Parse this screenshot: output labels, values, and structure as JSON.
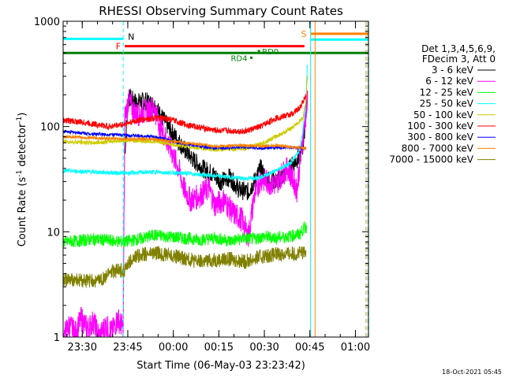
{
  "chart_data": {
    "type": "line",
    "title": "RHESSI Observing Summary Count Rates",
    "xlabel": "Start Time (06-May-03 23:23:42)",
    "ylabel_main": "Count Rate (s",
    "ylabel_sup1": "-1",
    "ylabel_mid": " detector",
    "ylabel_sup2": "-1",
    "ylabel_end": ")",
    "x_unit": "minutes after 23:23:42 UT",
    "xlim_minutes": [
      0,
      100.6
    ],
    "ylim": [
      1,
      1000
    ],
    "y_scale": "log",
    "x_ticks": [
      {
        "label": "23:30",
        "t": 6.3
      },
      {
        "label": "23:45",
        "t": 21.3
      },
      {
        "label": "00:00",
        "t": 36.3
      },
      {
        "label": "00:15",
        "t": 51.3
      },
      {
        "label": "00:30",
        "t": 66.3
      },
      {
        "label": "00:45",
        "t": 81.3
      },
      {
        "label": "01:00",
        "t": 96.3
      }
    ],
    "y_ticks": [
      {
        "label": "1",
        "v": 1
      },
      {
        "label": "10",
        "v": 10
      },
      {
        "label": "100",
        "v": 100
      },
      {
        "label": "1000",
        "v": 1000
      }
    ],
    "legend_header": [
      "Det 1,3,4,5,6,9,",
      "FDecim 3, Att 0"
    ],
    "legend_placement": "right, outside plot",
    "series": [
      {
        "name": "3 - 6 keV",
        "color": "#000000",
        "points": [
          [
            0,
            null
          ],
          [
            20,
            null
          ],
          [
            20.3,
            55
          ],
          [
            21.5,
            190
          ],
          [
            24,
            170
          ],
          [
            27,
            175
          ],
          [
            30,
            160
          ],
          [
            32,
            130
          ],
          [
            35,
            95
          ],
          [
            37,
            80
          ],
          [
            40,
            60
          ],
          [
            43,
            48
          ],
          [
            46,
            40
          ],
          [
            49,
            36
          ],
          [
            52,
            30
          ],
          [
            55,
            33
          ],
          [
            58,
            25
          ],
          [
            61,
            24
          ],
          [
            63,
            30
          ],
          [
            65,
            40
          ],
          [
            67,
            32
          ],
          [
            70,
            30
          ],
          [
            73,
            35
          ],
          [
            76,
            45
          ],
          [
            78,
            52
          ],
          [
            79,
            65
          ],
          [
            80,
            130
          ],
          [
            80.5,
            190
          ]
        ]
      },
      {
        "name": "6 - 12 keV",
        "color": "#ff00ff",
        "points": [
          [
            0,
            1
          ],
          [
            2,
            1.3
          ],
          [
            4,
            1.1
          ],
          [
            6,
            1.5
          ],
          [
            8,
            1.2
          ],
          [
            10,
            1.4
          ],
          [
            12,
            1
          ],
          [
            14,
            1.3
          ],
          [
            16,
            1.1
          ],
          [
            18,
            1.5
          ],
          [
            19.8,
            1.2
          ],
          [
            20.3,
            120
          ],
          [
            21.5,
            175
          ],
          [
            24,
            130
          ],
          [
            27,
            140
          ],
          [
            30,
            150
          ],
          [
            32,
            100
          ],
          [
            35,
            65
          ],
          [
            38,
            40
          ],
          [
            40,
            25
          ],
          [
            42,
            20
          ],
          [
            45,
            22
          ],
          [
            48,
            26
          ],
          [
            50,
            18
          ],
          [
            53,
            20
          ],
          [
            56,
            15
          ],
          [
            59,
            13
          ],
          [
            61,
            9
          ],
          [
            63,
            22
          ],
          [
            65,
            32
          ],
          [
            67,
            30
          ],
          [
            70,
            28
          ],
          [
            72,
            35
          ],
          [
            74,
            40
          ],
          [
            76,
            30
          ],
          [
            77,
            25
          ],
          [
            78,
            45
          ],
          [
            79,
            80
          ],
          [
            80,
            130
          ],
          [
            80.5,
            190
          ]
        ]
      },
      {
        "name": "12 - 25 keV",
        "color": "#00ff00",
        "points": [
          [
            0,
            8
          ],
          [
            5,
            8.2
          ],
          [
            10,
            8.5
          ],
          [
            15,
            8.3
          ],
          [
            20,
            8
          ],
          [
            25,
            8.5
          ],
          [
            30,
            9.3
          ],
          [
            35,
            9
          ],
          [
            40,
            8.7
          ],
          [
            45,
            8.4
          ],
          [
            50,
            8.7
          ],
          [
            55,
            8.2
          ],
          [
            60,
            8.7
          ],
          [
            63,
            8.5
          ],
          [
            66,
            9
          ],
          [
            70,
            8.8
          ],
          [
            74,
            9
          ],
          [
            78,
            9.5
          ],
          [
            79.5,
            11
          ],
          [
            80.2,
            11
          ]
        ]
      },
      {
        "name": "25 - 50 keV",
        "color": "#00ffff",
        "points": [
          [
            0,
            38
          ],
          [
            10,
            37
          ],
          [
            20,
            36
          ],
          [
            30,
            37
          ],
          [
            40,
            36
          ],
          [
            50,
            34
          ],
          [
            60,
            32
          ],
          [
            65,
            33
          ],
          [
            70,
            38
          ],
          [
            75,
            45
          ],
          [
            78,
            60
          ],
          [
            79,
            90
          ],
          [
            80,
            180
          ],
          [
            80.5,
            400
          ]
        ]
      },
      {
        "name": "50 - 100 keV",
        "color": "#cccc00",
        "points": [
          [
            0,
            72
          ],
          [
            10,
            70
          ],
          [
            20,
            74
          ],
          [
            30,
            72
          ],
          [
            40,
            65
          ],
          [
            50,
            60
          ],
          [
            60,
            62
          ],
          [
            65,
            68
          ],
          [
            70,
            80
          ],
          [
            75,
            95
          ],
          [
            79,
            120
          ],
          [
            80,
            180
          ],
          [
            80.5,
            300
          ]
        ]
      },
      {
        "name": "100 - 300 keV",
        "color": "#ff0000",
        "points": [
          [
            0,
            115
          ],
          [
            8,
            108
          ],
          [
            15,
            100
          ],
          [
            20,
            105
          ],
          [
            25,
            115
          ],
          [
            30,
            120
          ],
          [
            35,
            118
          ],
          [
            40,
            105
          ],
          [
            50,
            92
          ],
          [
            60,
            90
          ],
          [
            65,
            100
          ],
          [
            70,
            120
          ],
          [
            75,
            130
          ],
          [
            78,
            150
          ],
          [
            80,
            200
          ]
        ]
      },
      {
        "name": "300 - 800 keV",
        "color": "#0000ff",
        "points": [
          [
            0,
            90
          ],
          [
            10,
            85
          ],
          [
            20,
            83
          ],
          [
            30,
            80
          ],
          [
            40,
            68
          ],
          [
            50,
            62
          ],
          [
            60,
            64
          ],
          [
            65,
            62
          ],
          [
            70,
            63
          ],
          [
            75,
            63
          ],
          [
            80,
            62
          ]
        ]
      },
      {
        "name": "800 - 7000 keV",
        "color": "#ff8000",
        "points": [
          [
            0,
            80
          ],
          [
            10,
            78
          ],
          [
            20,
            76
          ],
          [
            30,
            76
          ],
          [
            40,
            70
          ],
          [
            50,
            65
          ],
          [
            60,
            66
          ],
          [
            65,
            65
          ],
          [
            70,
            66
          ],
          [
            75,
            64
          ],
          [
            80,
            62
          ]
        ]
      },
      {
        "name": "7000 - 15000 keV",
        "color": "#808000",
        "points": [
          [
            0,
            3.5
          ],
          [
            10,
            3.4
          ],
          [
            14,
            3.6
          ],
          [
            15,
            4.2
          ],
          [
            20,
            4.3
          ],
          [
            22,
            5.2
          ],
          [
            25,
            6
          ],
          [
            30,
            6.3
          ],
          [
            35,
            6
          ],
          [
            40,
            5.6
          ],
          [
            45,
            5.2
          ],
          [
            50,
            5.4
          ],
          [
            55,
            5.5
          ],
          [
            60,
            5.2
          ],
          [
            65,
            5.8
          ],
          [
            70,
            6.1
          ],
          [
            75,
            6.2
          ],
          [
            80,
            6.3
          ]
        ]
      }
    ],
    "attenuator_bars": [
      {
        "label": "F",
        "color": "#ff0000",
        "t_start": 20.3,
        "t_end": 79.5,
        "y": 580
      },
      {
        "label": "S",
        "color": "#ff8000",
        "t_start": 81.5,
        "t_end": 100.6,
        "y": 760
      }
    ],
    "night_bar": {
      "label": "N",
      "color": "#00ffff",
      "t_start": 0,
      "t_end": 19.8,
      "y": 680
    },
    "night_bar2": {
      "label": "",
      "color": "#00ffff",
      "t_start": 81.5,
      "t_end": 100.6,
      "y": 670
    },
    "saa_line": {
      "label": "",
      "color": "#008000",
      "t_start": 0,
      "t_end": 100.6,
      "y": 500
    },
    "rd_marks": [
      {
        "label": "RD0",
        "t": 64.5,
        "y": 520
      },
      {
        "label": "RD4",
        "t": 62.0,
        "y": 450
      }
    ],
    "vertical_markers": [
      {
        "t": 19.8,
        "color": "#00ffff",
        "style": "dashed"
      },
      {
        "t": 81.5,
        "color": "#00ffff",
        "style": "solid"
      },
      {
        "t": 83.0,
        "color": "#ff8000",
        "style": "solid"
      },
      {
        "t": 99.8,
        "color": "#ff8000",
        "style": "dashed"
      },
      {
        "t": 100.4,
        "color": "#00ffff",
        "style": "dashed"
      },
      {
        "t": 0,
        "color": "#00ffff",
        "style": "solid"
      }
    ],
    "footer_date": "18-Oct-2021 05:45"
  }
}
